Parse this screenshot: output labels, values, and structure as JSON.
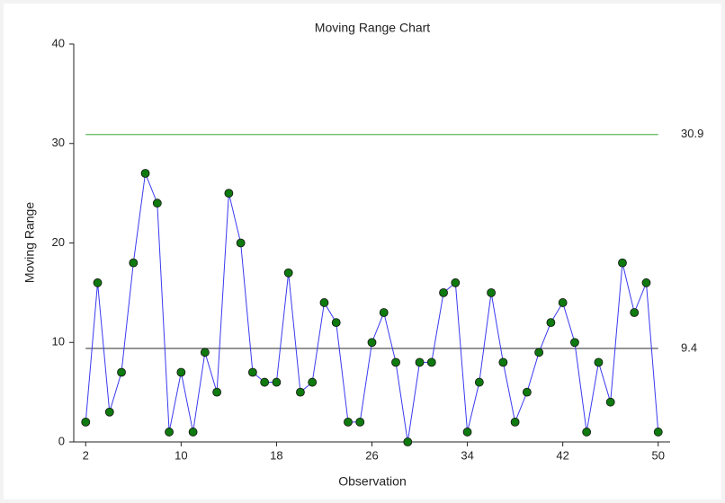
{
  "chart_data": {
    "type": "line",
    "title": "Moving Range Chart",
    "x_label": "Observation",
    "y_label": "Moving Range",
    "x": [
      2,
      3,
      4,
      5,
      6,
      7,
      8,
      9,
      10,
      11,
      12,
      13,
      14,
      15,
      16,
      17,
      18,
      19,
      20,
      21,
      22,
      23,
      24,
      25,
      26,
      27,
      28,
      29,
      30,
      31,
      32,
      33,
      34,
      35,
      36,
      37,
      38,
      39,
      40,
      41,
      42,
      43,
      44,
      45,
      46,
      47,
      48,
      49,
      50
    ],
    "series": [
      {
        "color": "#3a3af0",
        "marker_color": "#0f7a0f",
        "values": [
          2,
          16,
          3,
          7,
          18,
          27,
          24,
          1,
          7,
          1,
          9,
          5,
          25,
          20,
          7,
          6,
          6,
          17,
          5,
          6,
          14,
          12,
          2,
          2,
          10,
          13,
          8,
          0,
          8,
          8,
          15,
          16,
          1,
          6,
          15,
          8,
          2,
          5,
          9,
          12,
          14,
          10,
          1,
          8,
          4,
          18,
          13,
          16,
          1
        ]
      }
    ],
    "reference_lines": [
      {
        "value": 30.9,
        "color": "#5cb85c"
      },
      {
        "value": 9.4,
        "color": "#555555"
      }
    ],
    "xlim": [
      1,
      51
    ],
    "xticks": [
      2,
      10,
      18,
      26,
      34,
      42,
      50
    ],
    "ylim": [
      0,
      40
    ],
    "yticks": [
      0,
      10,
      20,
      30,
      40
    ]
  }
}
